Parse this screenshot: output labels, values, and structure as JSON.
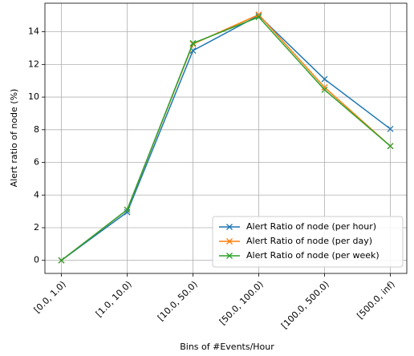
{
  "chart_data": {
    "type": "line",
    "xlabel": "Bins of #Events/Hour",
    "ylabel": "Alert ratio of node (%)",
    "categories": [
      "[0.0, 1.0)",
      "[1.0, 10.0)",
      "[10.0, 50.0)",
      "[50.0, 100.0)",
      "[100.0, 500.0)",
      "[500.0, inf)"
    ],
    "series": [
      {
        "name": "Alert Ratio of node (per hour)",
        "color": "#1f77b4",
        "values": [
          0,
          2.95,
          12.85,
          15.0,
          11.1,
          8.05
        ]
      },
      {
        "name": "Alert Ratio of node (per day)",
        "color": "#ff7f0e",
        "values": [
          0,
          3.1,
          13.25,
          15.05,
          10.6,
          7.0
        ]
      },
      {
        "name": "Alert Ratio of node (per week)",
        "color": "#2ca02c",
        "values": [
          0,
          3.1,
          13.3,
          14.9,
          10.45,
          7.0
        ]
      }
    ],
    "ylim": [
      -0.8,
      15.75
    ],
    "yticks": [
      0,
      2,
      4,
      6,
      8,
      10,
      12,
      14
    ],
    "grid": true,
    "legend": "lower right",
    "marker": "x"
  }
}
